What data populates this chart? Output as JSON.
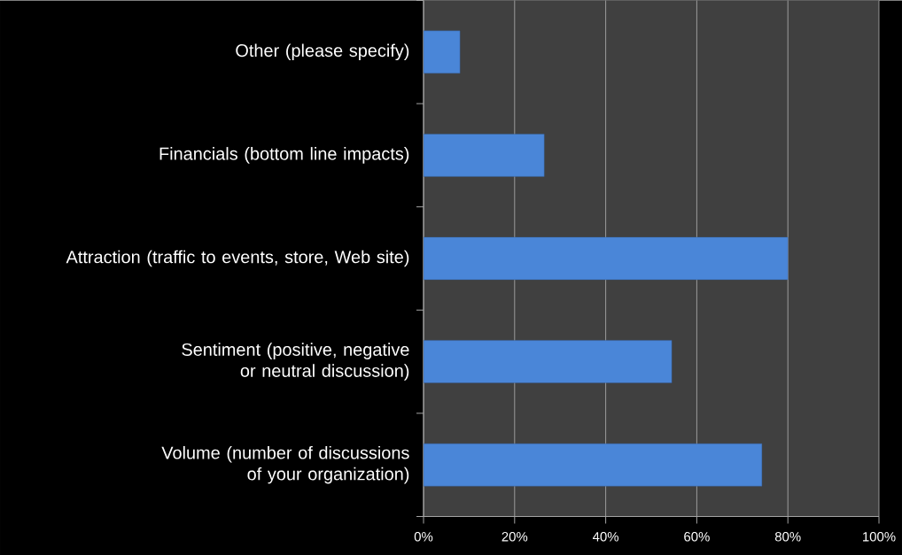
{
  "chart_data": {
    "type": "bar",
    "orientation": "horizontal",
    "categories": [
      "Other (please specify)",
      "Financials (bottom line impacts)",
      "Attraction (traffic to events, store, Web site)",
      "Sentiment (positive, negative or neutral discussion)",
      "Volume (number of discussions of your organization)"
    ],
    "values": [
      8,
      26.5,
      80,
      54.5,
      74.3
    ],
    "color": "#4a86d8",
    "xlim": [
      0,
      100
    ],
    "xticks": [
      {
        "value": 0,
        "label": "0%"
      },
      {
        "value": 20,
        "label": "20%"
      },
      {
        "value": 40,
        "label": "40%"
      },
      {
        "value": 60,
        "label": "60%"
      },
      {
        "value": 80,
        "label": "80%"
      },
      {
        "value": 100,
        "label": "100%"
      }
    ],
    "grid": "x"
  }
}
